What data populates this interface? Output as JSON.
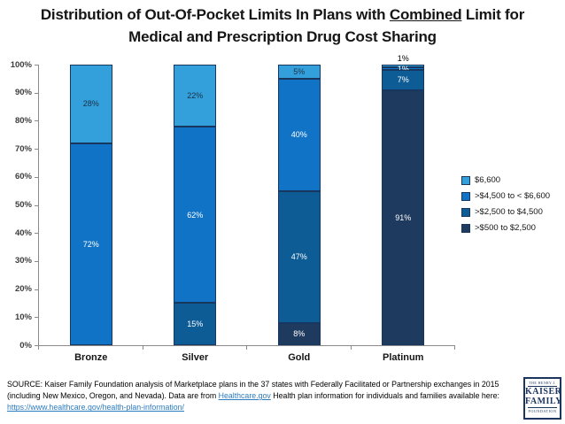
{
  "title": {
    "line1_prefix": "Distribution of Out-Of-Pocket Limits In Plans with ",
    "line1_underlined": "Combined",
    "line1_suffix": " Limit for",
    "line2": "Medical and Prescription Drug Cost Sharing"
  },
  "chart_data": {
    "type": "bar",
    "subtype": "stacked-100-percent",
    "title": "Distribution of Out-Of-Pocket Limits In Plans with Combined Limit for Medical and Prescription Drug Cost Sharing",
    "categories": [
      "Bronze",
      "Silver",
      "Gold",
      "Platinum"
    ],
    "series": [
      {
        "name": "$6,600",
        "color": "#33A0DC",
        "label_color": "#1C2F45",
        "values": [
          28,
          22,
          5,
          1
        ]
      },
      {
        "name": ">$4,500 to < $6,600",
        "color": "#1173C5",
        "label_color": "#FFFFFF",
        "values": [
          72,
          62,
          40,
          1
        ]
      },
      {
        "name": ">$2,500 to $4,500",
        "color": "#0D5C96",
        "label_color": "#FFFFFF",
        "values": [
          0,
          15,
          47,
          7
        ]
      },
      {
        "name": ">$500 to $2,500",
        "color": "#1F3A5F",
        "label_color": "#FFFFFF",
        "values": [
          0,
          0,
          8,
          91
        ]
      }
    ],
    "value_suffix": "%",
    "segment_border_color": "#17375E",
    "outside_label_color": "#000000",
    "y_axis": {
      "min": 0,
      "max": 100,
      "step": 10,
      "tick_labels": [
        "0%",
        "10%",
        "20%",
        "30%",
        "40%",
        "50%",
        "60%",
        "70%",
        "80%",
        "90%",
        "100%"
      ]
    },
    "xlabel": "",
    "ylabel": "",
    "grid": false,
    "legend_position": "right"
  },
  "source": {
    "text_before_link1": "SOURCE: Kaiser Family Foundation analysis of Marketplace plans in the 37 states with Federally Facilitated or Partnership exchanges in 2015 (including New Mexico, Oregon, and Nevada). Data are from ",
    "link1": "Healthcare.gov",
    "text_after_link1": " Health plan information for individuals and families available here:",
    "link2": "https://www.healthcare.gov/health-plan-information/"
  },
  "logo": {
    "top": "THE HENRY J.",
    "name1": "KAISER",
    "name2": "FAMILY",
    "bottom": "FOUNDATION"
  }
}
